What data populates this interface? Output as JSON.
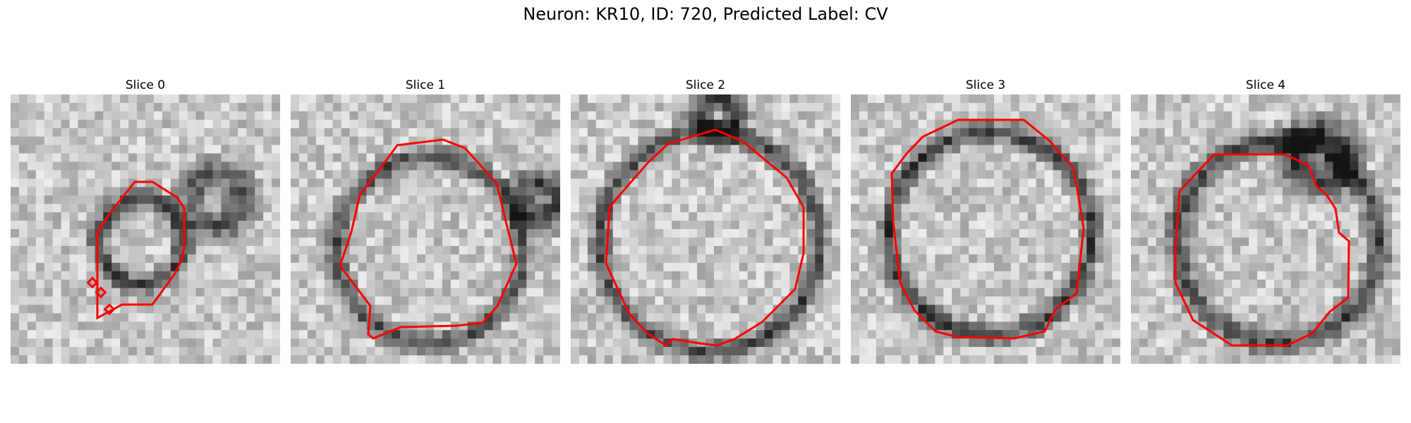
{
  "figure": {
    "title": "Neuron: KR10, ID: 720, Predicted Label: CV",
    "contour_color": "#ff0000"
  },
  "panels": [
    {
      "title": "Slice 0"
    },
    {
      "title": "Slice 1"
    },
    {
      "title": "Slice 2"
    },
    {
      "title": "Slice 3"
    },
    {
      "title": "Slice 4"
    }
  ]
}
